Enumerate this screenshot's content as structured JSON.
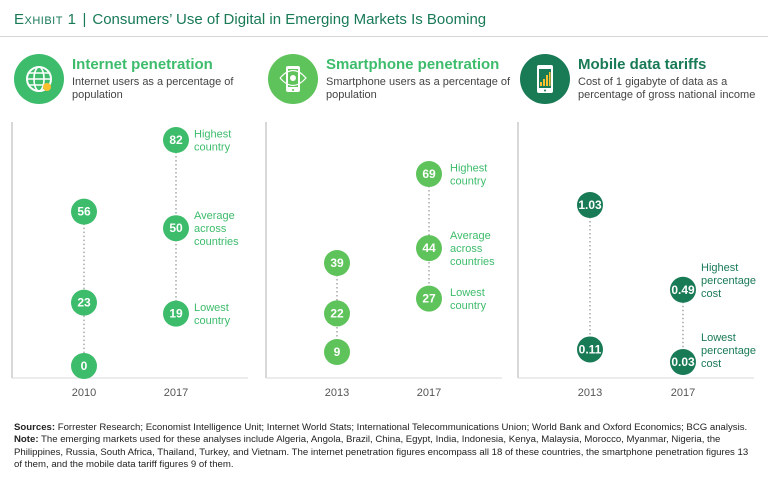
{
  "header": {
    "exhibit": "Exhibit 1",
    "title": "Consumers’ Use of Digital in Emerging Markets Is Booming"
  },
  "colors": {
    "green_light": "#3dbc6c",
    "green_medium": "#32a05c",
    "green_dark": "#197a56",
    "dotted": "#9a9a9a",
    "label": "#3dbc6c",
    "label_dark": "#197a56"
  },
  "panels": [
    {
      "title": "Internet penetration",
      "subtitle": "Internet users as a percentage of population",
      "icon": "globe-icon",
      "accent": "#3dbc6c"
    },
    {
      "title": "Smartphone penetration",
      "subtitle": "Smartphone users as a percentage of population",
      "icon": "smartphone-icon",
      "accent": "#5fc35b"
    },
    {
      "title": "Mobile data tariffs",
      "subtitle": "Cost of 1 gigabyte of data as a percentage of gross national income",
      "icon": "phone-signal-icon",
      "accent": "#197a56"
    }
  ],
  "chart_data": [
    {
      "type": "scatter",
      "title": "Internet penetration",
      "categories": [
        "2010",
        "2017"
      ],
      "ylim": [
        0,
        90
      ],
      "series": [
        {
          "name": "Highest country",
          "values": [
            56,
            82
          ]
        },
        {
          "name": "Average across countries",
          "values": [
            23,
            50
          ]
        },
        {
          "name": "Lowest country",
          "values": [
            0,
            19
          ]
        }
      ],
      "color": "#3dbc6c",
      "label_color": "#3dbc6c"
    },
    {
      "type": "scatter",
      "title": "Smartphone penetration",
      "categories": [
        "2013",
        "2017"
      ],
      "ylim": [
        0,
        90
      ],
      "series": [
        {
          "name": "Highest country",
          "values": [
            39,
            69
          ]
        },
        {
          "name": "Average across countries",
          "values": [
            22,
            44
          ]
        },
        {
          "name": "Lowest country",
          "values": [
            9,
            27
          ]
        }
      ],
      "color": "#5fc35b",
      "label_color": "#3dbc6c"
    },
    {
      "type": "scatter",
      "title": "Mobile data tariffs",
      "categories": [
        "2013",
        "2017"
      ],
      "ylim": [
        0,
        1.2
      ],
      "series": [
        {
          "name": "Highest percentage cost",
          "values": [
            1.03,
            0.49
          ]
        },
        {
          "name": "Lowest percentage cost",
          "values": [
            0.11,
            0.03
          ]
        }
      ],
      "color": "#197a56",
      "label_color": "#197a56"
    }
  ],
  "sources": {
    "sources_label": "Sources:",
    "sources_text": "Forrester Research; Economist Intelligence Unit; Internet World Stats; International Telecommunications Union; World Bank and Oxford Economics; BCG analysis.",
    "note_label": "Note:",
    "note_text": "The emerging markets used for these analyses include Algeria, Angola, Brazil, China, Egypt, India, Indonesia, Kenya, Malaysia, Morocco, Myanmar, Nigeria, the Philippines, Russia, South Africa, Thailand, Turkey, and Vietnam. The internet penetration figures encompass all 18 of these countries, the smartphone penetration figures 13 of them, and the mobile data tariff figures 9 of them."
  }
}
